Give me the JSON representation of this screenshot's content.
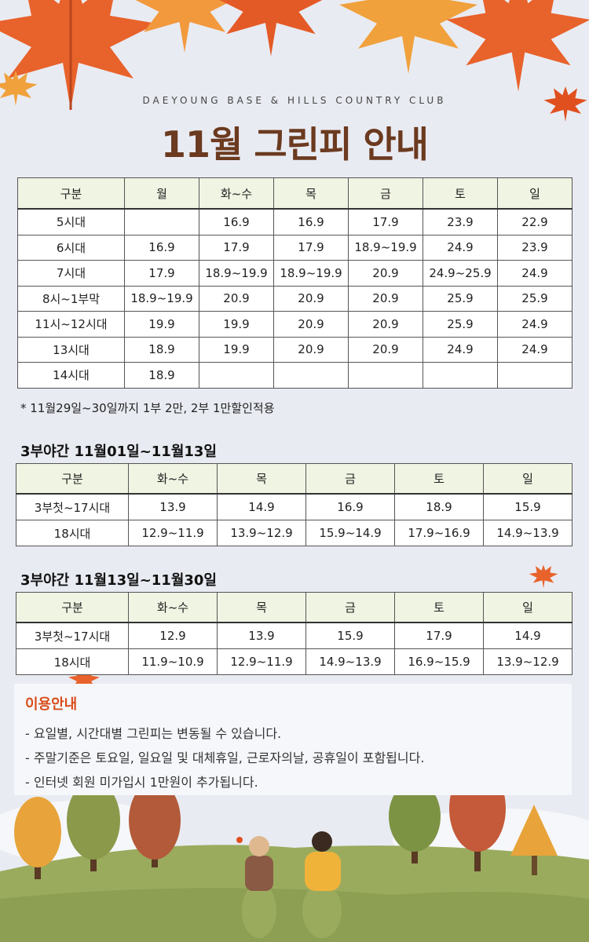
{
  "header": {
    "subtitle": "DAEYOUNG BASE & HILLS COUNTRY CLUB",
    "title": "11월 그린피 안내"
  },
  "main_table": {
    "headers": [
      "구분",
      "월",
      "화~수",
      "목",
      "금",
      "토",
      "일"
    ],
    "rows": [
      [
        "5시대",
        "",
        "16.9",
        "16.9",
        "17.9",
        "23.9",
        "22.9"
      ],
      [
        "6시대",
        "16.9",
        "17.9",
        "17.9",
        "18.9~19.9",
        "24.9",
        "23.9"
      ],
      [
        "7시대",
        "17.9",
        "18.9~19.9",
        "18.9~19.9",
        "20.9",
        "24.9~25.9",
        "24.9"
      ],
      [
        "8시~1부막",
        "18.9~19.9",
        "20.9",
        "20.9",
        "20.9",
        "25.9",
        "25.9"
      ],
      [
        "11시~12시대",
        "19.9",
        "19.9",
        "20.9",
        "20.9",
        "25.9",
        "24.9"
      ],
      [
        "13시대",
        "18.9",
        "19.9",
        "20.9",
        "20.9",
        "24.9",
        "24.9"
      ],
      [
        "14시대",
        "18.9",
        "",
        "",
        "",
        "",
        ""
      ]
    ],
    "note": "* 11월29일~30일까지 1부 2만, 2부 1만할인적용"
  },
  "night1": {
    "title": "3부야간  11월01일~11월13일",
    "headers": [
      "구분",
      "화~수",
      "목",
      "금",
      "토",
      "일"
    ],
    "rows": [
      [
        "3부첫~17시대",
        "13.9",
        "14.9",
        "16.9",
        "18.9",
        "15.9"
      ],
      [
        "18시대",
        "12.9~11.9",
        "13.9~12.9",
        "15.9~14.9",
        "17.9~16.9",
        "14.9~13.9"
      ]
    ]
  },
  "night2": {
    "title": "3부야간  11월13일~11월30일",
    "headers": [
      "구분",
      "화~수",
      "목",
      "금",
      "토",
      "일"
    ],
    "rows": [
      [
        "3부첫~17시대",
        "12.9",
        "13.9",
        "15.9",
        "17.9",
        "14.9"
      ],
      [
        "18시대",
        "11.9~10.9",
        "12.9~11.9",
        "14.9~13.9",
        "16.9~15.9",
        "13.9~12.9"
      ]
    ]
  },
  "info": {
    "title": "이용안내",
    "lines": [
      "- 요일별, 시간대별 그린피는 변동될 수 있습니다.",
      "- 주말기준은 토요일, 일요일 및 대체휴일, 근로자의날, 공휴일이 포함됩니다.",
      "- 인터넷 회원 미가입시 1만원이 추가됩니다."
    ]
  },
  "colors": {
    "title": "#6b3a1f",
    "header_bg": "#f0f4e3",
    "info_title": "#d94d1a",
    "page_bg": "#e9ebf2"
  }
}
